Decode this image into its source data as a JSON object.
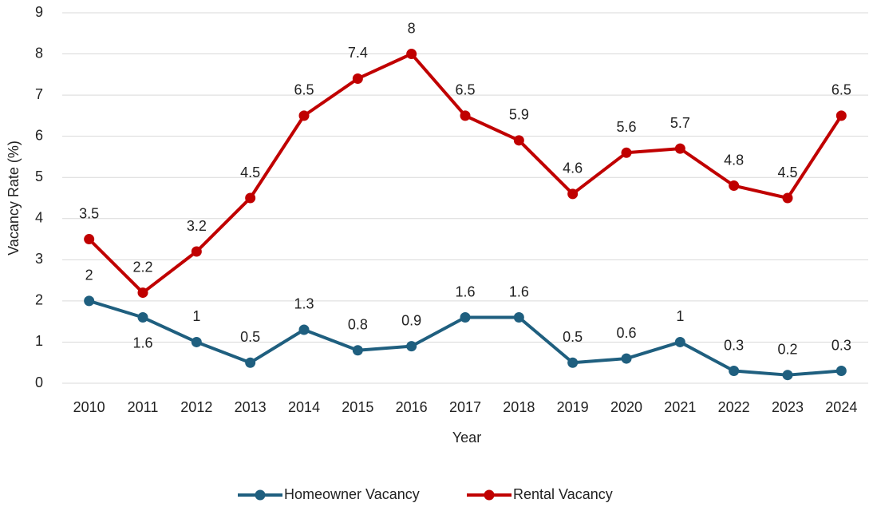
{
  "chart_data": {
    "type": "line",
    "x_label": "Year",
    "y_label": "Vacancy Rate (%)",
    "categories": [
      "2010",
      "2011",
      "2012",
      "2013",
      "2014",
      "2015",
      "2016",
      "2017",
      "2018",
      "2019",
      "2020",
      "2021",
      "2022",
      "2023",
      "2024"
    ],
    "series": [
      {
        "name": "Homeowner Vacancy",
        "color": "#1f5f7f",
        "values": [
          2,
          1.6,
          1,
          0.5,
          1.3,
          0.8,
          0.9,
          1.6,
          1.6,
          0.5,
          0.6,
          1,
          0.3,
          0.2,
          0.3
        ]
      },
      {
        "name": "Rental Vacancy",
        "color": "#c00000",
        "values": [
          3.5,
          2.2,
          3.2,
          4.5,
          6.5,
          7.4,
          8,
          6.5,
          5.9,
          4.6,
          5.6,
          5.7,
          4.8,
          4.5,
          6.5
        ]
      }
    ],
    "ylim": [
      0,
      9
    ],
    "yticks": [
      0,
      1,
      2,
      3,
      4,
      5,
      6,
      7,
      8,
      9
    ],
    "grid": true,
    "legend": "bottom"
  }
}
